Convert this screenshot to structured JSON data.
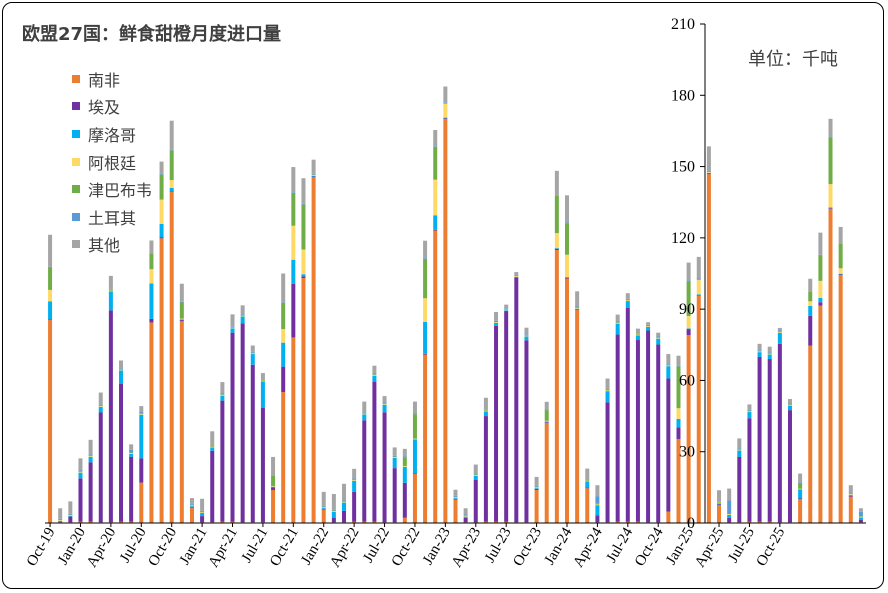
{
  "title": "欧盟27国：鲜食甜橙月度进口量",
  "unit": "单位：千吨",
  "chart_data": {
    "type": "bar",
    "stacked": true,
    "title": "欧盟27国：鲜食甜橙月度进口量",
    "ylabel": "单位：千吨",
    "ylim": [
      0,
      210
    ],
    "yticks": [
      0,
      30,
      60,
      90,
      120,
      150,
      180,
      210
    ],
    "y_axis_position": "right",
    "legend_position": "top-left",
    "x_tick_labels": [
      "Oct-19",
      "Jan-20",
      "Apr-20",
      "Jul-20",
      "Oct-20",
      "Jan-21",
      "Apr-21",
      "Jul-21",
      "Oct-21",
      "Jan-22",
      "Apr-22",
      "Jul-22",
      "Oct-22",
      "Jan-23",
      "Apr-23",
      "Jul-23",
      "Oct-23",
      "Jan-24",
      "Apr-24",
      "Jul-24",
      "Oct-24",
      "Jan-25",
      "Apr-25",
      "Jul-25",
      "Oct-25"
    ],
    "x_tick_every": 3,
    "series": [
      {
        "name": "南非",
        "color": "#ed7d31",
        "values": [
          85.4,
          0.3,
          0.3,
          0.5,
          0.5,
          0.3,
          0.3,
          0.5,
          0.5,
          17.0,
          84.4,
          119.8,
          139.4,
          84.9,
          6.3,
          0.3,
          0.3,
          0.5,
          0.5,
          0.3,
          0.3,
          0.3,
          13.9,
          55.1,
          78.1,
          103.1,
          145.5,
          5.7,
          0.3,
          0.3,
          0.5,
          0.5,
          0.5,
          0.3,
          0.3,
          2.2,
          20.6,
          70.9,
          123.1,
          170.0,
          9.9,
          0.3,
          0.3,
          0.5,
          0.5,
          0.5,
          0.3,
          0.3,
          13.9,
          42.1,
          114.9,
          102.9,
          89.6,
          14.6,
          0.3,
          0.3,
          0.5,
          0.5,
          0.5,
          0.3,
          0.3,
          4.8,
          35.3,
          79.1,
          95.6,
          146.8,
          7.5,
          0.3,
          0.3,
          0.5,
          0.5,
          0.5,
          0.3,
          0.3,
          10.0,
          74.7,
          91.5,
          132.2,
          104.3,
          11.1,
          0.3
        ]
      },
      {
        "name": "埃及",
        "color": "#7030a0",
        "values": [
          0.3,
          0.3,
          2.4,
          18.3,
          25.0,
          46.2,
          89.2,
          58.0,
          27.4,
          10.2,
          1.5,
          0.5,
          0.3,
          0.5,
          0.3,
          2.6,
          30.1,
          51.0,
          79.6,
          83.7,
          66.3,
          48.1,
          1.1,
          10.7,
          22.6,
          0.7,
          0.3,
          0.3,
          1.8,
          4.8,
          12.6,
          42.7,
          59.0,
          46.3,
          22.8,
          14.7,
          0.3,
          0.3,
          0.3,
          0.3,
          0.3,
          1.9,
          17.8,
          44.5,
          82.5,
          88.7,
          103.0,
          76.6,
          0.5,
          0.3,
          0.5,
          0.3,
          0.3,
          0.3,
          2.9,
          50.5,
          78.8,
          90.0,
          76.5,
          80.7,
          74.8,
          56.0,
          5.0,
          2.5,
          0.3,
          0.3,
          0.3,
          1.8,
          27.6,
          43.6,
          69.4,
          68.5,
          75.1,
          47.2,
          0.3,
          12.5,
          1.4,
          0.3,
          0.3,
          0.3,
          1.1
        ]
      },
      {
        "name": "摩洛哥",
        "color": "#00b0f0",
        "values": [
          7.6,
          0.3,
          0.3,
          2.4,
          2.4,
          2.4,
          8.0,
          5.7,
          1.2,
          18.4,
          14.9,
          5.6,
          1.3,
          0.3,
          0.5,
          1.3,
          1.4,
          2.1,
          1.8,
          2.9,
          4.5,
          11.2,
          0.3,
          10.1,
          10.1,
          0.9,
          0.3,
          0.3,
          2.6,
          3.5,
          4.7,
          2.5,
          2.5,
          3.2,
          4.3,
          6.7,
          14.3,
          13.4,
          6.1,
          0.3,
          0.3,
          0.5,
          1.8,
          2.0,
          1.2,
          0.3,
          0.3,
          1.6,
          0.3,
          0.3,
          0.3,
          0.3,
          0.3,
          2.6,
          4.3,
          4.7,
          4.6,
          2.9,
          2.0,
          1.5,
          2.5,
          5.2,
          3.5,
          0.3,
          0.3,
          0.3,
          0.5,
          1.3,
          2.6,
          2.6,
          2.0,
          1.9,
          4.7,
          1.9,
          3.8,
          4.2,
          1.8,
          0.3,
          0.3,
          0.5,
          0.9
        ]
      },
      {
        "name": "阿根廷",
        "color": "#ffd966",
        "values": [
          4.8,
          0.3,
          0.3,
          0.3,
          0.3,
          0.3,
          0.3,
          0.3,
          0.3,
          0.3,
          6.0,
          10.2,
          3.3,
          0.3,
          0.3,
          0.3,
          0.3,
          0.3,
          0.3,
          0.3,
          0.3,
          0.3,
          0.3,
          5.7,
          14.3,
          10.4,
          0.3,
          0.3,
          0.3,
          0.3,
          0.3,
          0.3,
          0.3,
          0.3,
          0.3,
          0.3,
          0.3,
          10.0,
          15.0,
          5.9,
          0.3,
          0.3,
          0.3,
          0.3,
          0.3,
          0.3,
          0.3,
          0.3,
          0.3,
          0.3,
          6.3,
          9.4,
          0.3,
          0.3,
          0.3,
          0.3,
          0.3,
          0.3,
          0.3,
          0.3,
          0.3,
          0.3,
          4.5,
          5.2,
          6.1,
          0.3,
          0.3,
          0.3,
          0.3,
          0.3,
          0.3,
          0.3,
          0.3,
          0.3,
          0.3,
          1.9,
          7.2,
          9.8,
          2.3,
          0.3,
          0.3
        ]
      },
      {
        "name": "津巴布韦",
        "color": "#70ad47",
        "values": [
          9.4,
          0.3,
          0.3,
          0.3,
          0.3,
          0.3,
          0.3,
          0.3,
          0.3,
          0.3,
          6.5,
          10.5,
          12.5,
          6.8,
          0.3,
          0.3,
          0.3,
          0.3,
          0.3,
          0.3,
          0.3,
          0.3,
          4.2,
          11.0,
          13.8,
          18.9,
          0.3,
          0.3,
          0.3,
          0.3,
          0.3,
          0.3,
          0.3,
          0.3,
          0.3,
          3.8,
          10.3,
          16.5,
          13.8,
          0.3,
          0.3,
          0.3,
          0.3,
          0.3,
          0.3,
          0.3,
          0.3,
          0.3,
          0.3,
          4.5,
          15.7,
          13.3,
          0.3,
          0.3,
          0.3,
          0.3,
          0.3,
          0.3,
          0.3,
          0.3,
          0.3,
          0.3,
          17.6,
          14.7,
          0.3,
          0.3,
          0.3,
          0.3,
          0.3,
          0.3,
          0.3,
          0.3,
          0.3,
          0.3,
          2.5,
          4.0,
          10.7,
          19.7,
          10.3,
          0.3,
          0.3
        ]
      },
      {
        "name": "土耳其",
        "color": "#5b9bd5",
        "values": [
          0.3,
          0.3,
          0.3,
          0.3,
          0.3,
          0.3,
          0.3,
          0.3,
          1.1,
          0.5,
          0.3,
          0.3,
          0.3,
          0.3,
          0.3,
          0.3,
          0.3,
          0.3,
          0.3,
          0.3,
          0.3,
          0.3,
          0.3,
          0.3,
          0.3,
          0.3,
          0.3,
          0.3,
          0.3,
          0.3,
          0.3,
          0.3,
          0.3,
          0.3,
          0.3,
          0.3,
          0.3,
          0.3,
          0.3,
          0.3,
          0.3,
          0.3,
          0.3,
          0.3,
          0.3,
          0.3,
          0.3,
          0.3,
          0.3,
          0.3,
          0.3,
          0.3,
          0.3,
          0.3,
          3.2,
          0.3,
          0.3,
          0.3,
          0.3,
          0.3,
          0.3,
          0.3,
          0.3,
          0.3,
          0.3,
          0.3,
          0.3,
          5.5,
          0.3,
          0.3,
          0.3,
          0.3,
          0.3,
          0.3,
          0.3,
          0.3,
          0.3,
          0.3,
          0.3,
          0.3,
          1.8
        ]
      },
      {
        "name": "其他",
        "color": "#a5a5a5",
        "values": [
          13.5,
          4.4,
          5.2,
          5.1,
          6.2,
          5.1,
          5.6,
          3.3,
          2.3,
          2.5,
          5.3,
          5.2,
          12.2,
          7.6,
          2.5,
          5.1,
          5.9,
          4.8,
          5.0,
          3.8,
          2.7,
          2.6,
          7.7,
          12.1,
          10.6,
          10.8,
          5.9,
          5.9,
          6.6,
          7.0,
          4.1,
          4.5,
          3.3,
          2.7,
          3.5,
          3.2,
          5.0,
          7.4,
          6.8,
          6.6,
          2.6,
          2.6,
          3.8,
          4.8,
          3.7,
          1.5,
          1.1,
          2.8,
          3.8,
          3.2,
          10.2,
          11.4,
          6.4,
          4.5,
          4.6,
          4.4,
          2.9,
          2.4,
          1.9,
          1.1,
          1.6,
          4.2,
          4.2,
          7.5,
          9.1,
          10.2,
          4.6,
          5.0,
          4.2,
          2.3,
          2.6,
          2.4,
          1.1,
          1.9,
          3.6,
          5.2,
          9.3,
          7.5,
          6.8,
          3.1,
          1.5
        ]
      }
    ]
  }
}
